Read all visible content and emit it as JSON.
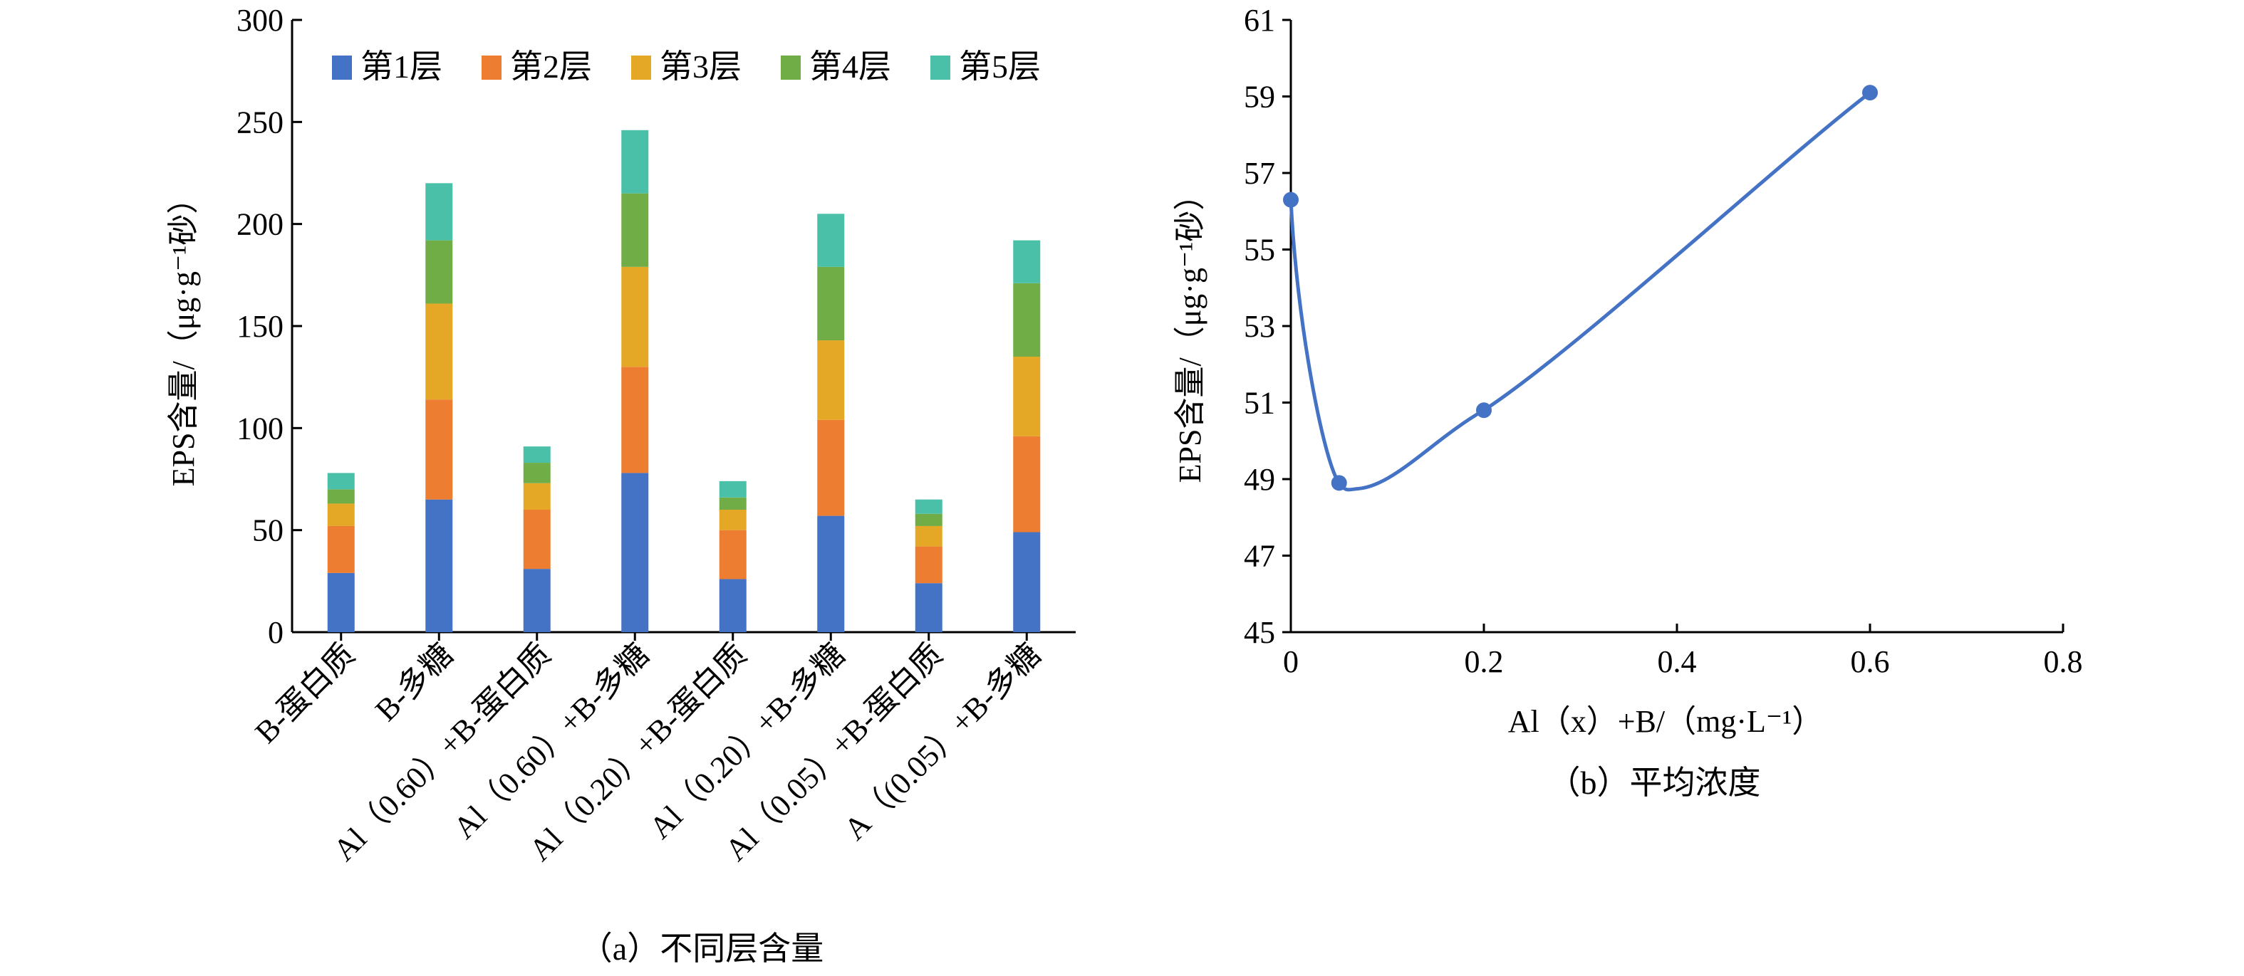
{
  "chart_data": [
    {
      "type": "bar",
      "stacked": true,
      "caption": "（a）不同层含量",
      "ylabel": "EPS含量/（μg·g⁻¹砂）",
      "ylim": [
        0,
        300
      ],
      "yticks": [
        0,
        50,
        100,
        150,
        200,
        250,
        300
      ],
      "legend_position": "top",
      "categories": [
        "B-蛋白质",
        "B-多糖",
        "Al（0.60）+B-蛋白质",
        "Al（0.60）+B-多糖",
        "Al（0.20）+B-蛋白质",
        "Al（0.20）+B-多糖",
        "Al（0.05）+B-蛋白质",
        "A（(0.05）+B-多糖"
      ],
      "series": [
        {
          "name": "第1层",
          "color": "#4472C4",
          "values": [
            29,
            65,
            31,
            78,
            26,
            57,
            24,
            49
          ]
        },
        {
          "name": "第2层",
          "color": "#ED7D31",
          "values": [
            23,
            49,
            29,
            52,
            24,
            47,
            18,
            47
          ]
        },
        {
          "name": "第3层",
          "color": "#E5A726",
          "values": [
            11,
            47,
            13,
            49,
            10,
            39,
            10,
            39
          ]
        },
        {
          "name": "第4层",
          "color": "#70AD47",
          "values": [
            7,
            31,
            10,
            36,
            6,
            36,
            6,
            36
          ]
        },
        {
          "name": "第5层",
          "color": "#4BC0A8",
          "values": [
            8,
            28,
            8,
            31,
            8,
            26,
            7,
            21
          ]
        }
      ]
    },
    {
      "type": "line",
      "caption": "（b）平均浓度",
      "xlabel": "Al（x）+B/（mg·L⁻¹）",
      "ylabel": "EPS含量/（μg·g⁻¹砂）",
      "xlim": [
        0,
        0.8
      ],
      "ylim": [
        45,
        61
      ],
      "xticks": [
        0,
        0.2,
        0.4,
        0.6,
        0.8
      ],
      "xtick_labels": [
        "0",
        "0.2",
        "0.4",
        "0.6",
        "0.8"
      ],
      "yticks": [
        45,
        47,
        49,
        51,
        53,
        55,
        57,
        59,
        61
      ],
      "line_color": "#4472C4",
      "x": [
        0,
        0.05,
        0.2,
        0.6
      ],
      "y": [
        56.3,
        48.9,
        50.8,
        59.1
      ],
      "curve_min": {
        "x": 0.07,
        "y": 48.75
      }
    }
  ]
}
